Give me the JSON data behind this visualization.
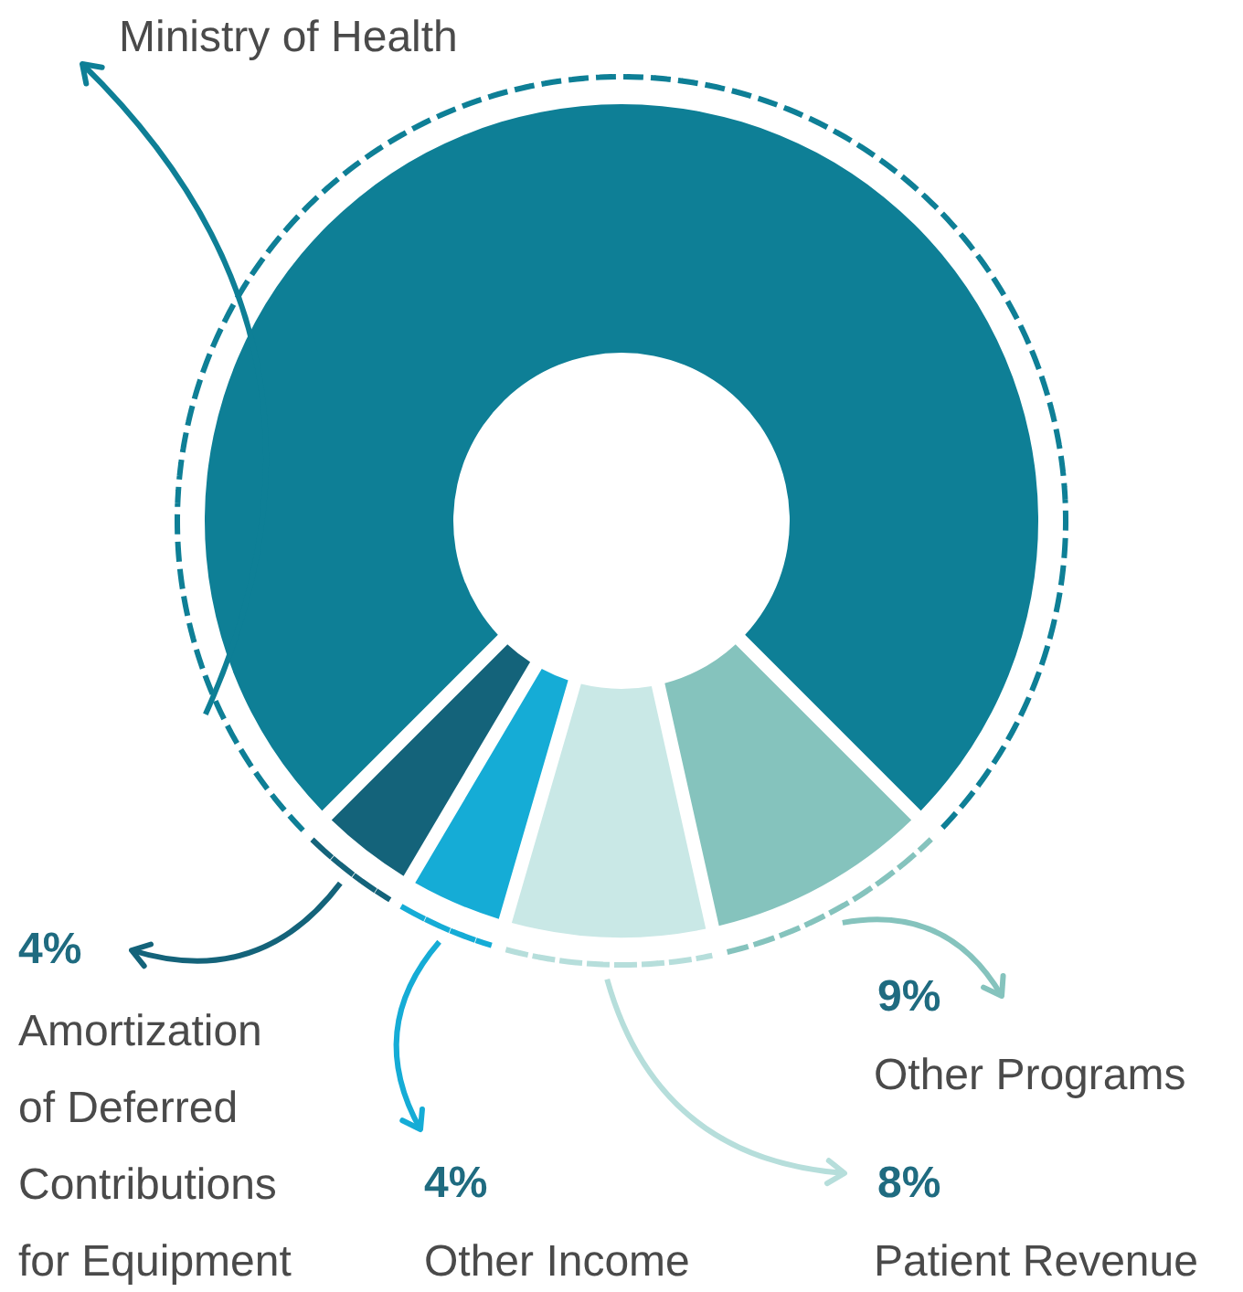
{
  "chart_data": {
    "type": "donut",
    "categories": [
      "Ministry of Health",
      "Other Programs",
      "Patient Revenue",
      "Other Income",
      "Amortization of Deferred Contributions for Equipment"
    ],
    "values": [
      75,
      9,
      8,
      4,
      4
    ],
    "value_labels": [
      null,
      "9%",
      "8%",
      "4%",
      "4%"
    ],
    "colors": [
      "#0e7f96",
      "#85c3bd",
      "#c9e8e6",
      "#15acd6",
      "#14637a"
    ]
  }
}
